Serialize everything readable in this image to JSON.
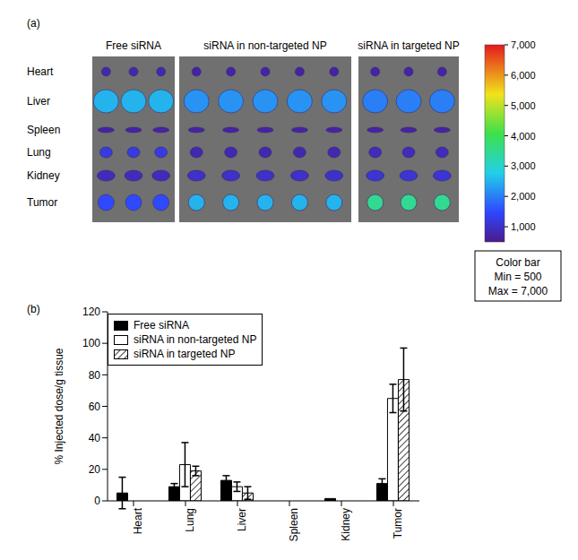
{
  "chart_data": [
    {
      "type": "image",
      "panel_label": "(a)",
      "columns": [
        "Free siRNA",
        "siRNA in non-targeted NP",
        "siRNA in targeted NP"
      ],
      "rows": [
        "Heart",
        "Liver",
        "Spleen",
        "Lung",
        "Kidney",
        "Tumor"
      ],
      "intensity": [
        [
          800,
          2500,
          700,
          1200,
          900,
          1500
        ],
        [
          700,
          2200,
          700,
          800,
          1000,
          2500
        ],
        [
          700,
          2000,
          700,
          900,
          1100,
          3500
        ]
      ],
      "colorbar": {
        "title": "Color bar",
        "range": [
          500,
          7000
        ],
        "ticks": [
          {
            "value": 1000,
            "label": "1,000"
          },
          {
            "value": 2000,
            "label": "2,000"
          },
          {
            "value": 3000,
            "label": "3,000"
          },
          {
            "value": 4000,
            "label": "4,000"
          },
          {
            "value": 5000,
            "label": "5,000"
          },
          {
            "value": 6000,
            "label": "6,000"
          },
          {
            "value": 7000,
            "label": "7,000"
          }
        ],
        "min_label": "Min = 500",
        "max_label": "Max = 7,000"
      }
    },
    {
      "type": "bar",
      "panel_label": "(b)",
      "categories": [
        "Heart",
        "Lung",
        "Liver",
        "Spleen",
        "Kidney",
        "Tumor"
      ],
      "ylabel": "% Injected dose/g tissue",
      "ylim": [
        0,
        120
      ],
      "yticks": [
        0,
        20,
        40,
        60,
        80,
        100,
        120
      ],
      "grid": false,
      "legend": "upper left",
      "series": [
        {
          "name": "Free siRNA",
          "color": "#000000",
          "values": [
            5,
            9,
            13,
            0,
            1.5,
            11
          ],
          "errors": [
            10,
            2,
            3,
            0,
            0,
            3
          ]
        },
        {
          "name": "siRNA in non-targeted NP",
          "color": "#ffffff",
          "values": [
            0,
            23,
            9,
            0,
            0,
            65
          ],
          "errors": [
            0,
            14,
            3,
            0,
            0,
            9
          ]
        },
        {
          "name": "siRNA in targeted NP",
          "color": "#ffffff",
          "line_style": "hatched",
          "values": [
            0,
            19,
            5,
            0,
            0,
            77
          ],
          "errors": [
            0,
            3,
            4,
            0,
            0,
            20
          ]
        }
      ]
    }
  ]
}
